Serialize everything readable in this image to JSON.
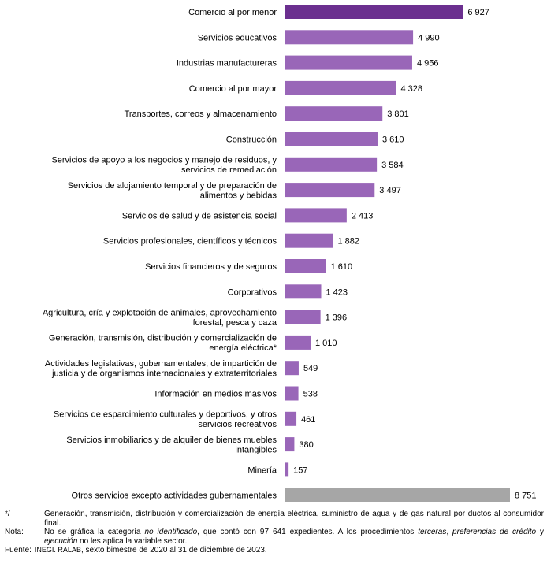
{
  "chart_data": {
    "type": "bar",
    "orientation": "horizontal",
    "categories": [
      [
        "Comercio al por menor"
      ],
      [
        "Servicios educativos"
      ],
      [
        "Industrias manufactureras"
      ],
      [
        "Comercio al por mayor"
      ],
      [
        "Transportes, correos y almacenamiento"
      ],
      [
        "Construcción"
      ],
      [
        "Servicios de apoyo a los negocios y manejo de residuos, y",
        "servicios de remediación"
      ],
      [
        "Servicios de alojamiento temporal y de preparación de",
        "alimentos y bebidas"
      ],
      [
        "Servicios de salud y de asistencia social"
      ],
      [
        "Servicios profesionales, científicos y técnicos"
      ],
      [
        "Servicios financieros y de seguros"
      ],
      [
        "Corporativos"
      ],
      [
        "Agricultura, cría y explotación de animales, aprovechamiento",
        "forestal, pesca y caza"
      ],
      [
        "Generación, transmisión, distribución y comercialización de",
        "energía eléctrica*"
      ],
      [
        "Actividades legislativas, gubernamentales, de impartición de",
        "justicia y de organismos internacionales y extraterritoriales"
      ],
      [
        "Información en medios masivos"
      ],
      [
        "Servicios de esparcimiento culturales y deportivos, y otros",
        "servicios recreativos"
      ],
      [
        "Servicios inmobiliarios y de alquiler de bienes muebles",
        "intangibles"
      ],
      [
        "Minería"
      ],
      [
        "Otros servicios excepto actividades gubernamentales"
      ]
    ],
    "values": [
      6927,
      4990,
      4956,
      4328,
      3801,
      3610,
      3584,
      3497,
      2413,
      1882,
      1610,
      1423,
      1396,
      1010,
      549,
      538,
      461,
      380,
      157,
      8751
    ],
    "value_labels": [
      "6 927",
      "4 990",
      "4 956",
      "4 328",
      "3 801",
      "3 610",
      "3 584",
      "3 497",
      "2 413",
      "1 882",
      "1 610",
      "1 423",
      "1 396",
      "1 010",
      "549",
      "538",
      "461",
      "380",
      "157",
      "8 751"
    ],
    "bar_colors": [
      "#6b2f8f",
      "#9966b8",
      "#9966b8",
      "#9966b8",
      "#9966b8",
      "#9966b8",
      "#9966b8",
      "#9966b8",
      "#9966b8",
      "#9966b8",
      "#9966b8",
      "#9966b8",
      "#9966b8",
      "#9966b8",
      "#9966b8",
      "#9966b8",
      "#9966b8",
      "#9966b8",
      "#9966b8",
      "#a6a6a6"
    ],
    "xlim": [
      0,
      9000
    ],
    "grid": false,
    "legend": "none",
    "title": "",
    "xlabel": "",
    "ylabel": ""
  },
  "notes": [
    {
      "key": "*/",
      "text": "Generación, transmisión, distribución y comercialización de energía eléctrica, suministro de agua y de gas natural por ductos al consumidor final."
    },
    {
      "key": "Nota:",
      "text_parts": [
        "No se gráfica la categoría ",
        "no identificado",
        ", que contó con 97 641 expedientes. A los procedimientos ",
        "terceras",
        ", ",
        "preferencias de crédito",
        " y ",
        "ejecución",
        " no les aplica la variable sector."
      ]
    },
    {
      "key": "Fuente:",
      "source_org": "INEGI. RALAB",
      "text": ", sexto bimestre de 2020 al 31 de diciembre de 2023."
    }
  ]
}
